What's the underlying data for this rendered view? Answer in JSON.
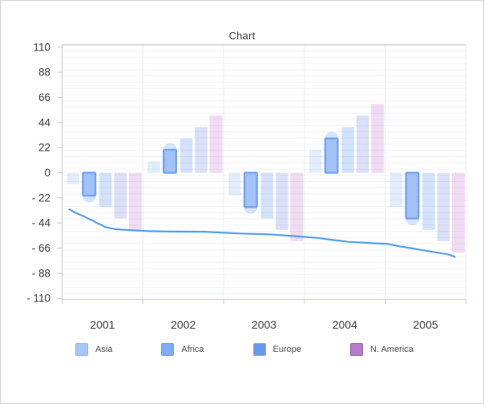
{
  "chart_data": {
    "type": "combo-bar-line",
    "title": "Chart",
    "categories": [
      "2001",
      "2002",
      "2003",
      "2004",
      "2005"
    ],
    "y_axis": {
      "min": -110,
      "max": 110,
      "tick_interval": 22,
      "tick_values": [
        110,
        88,
        66,
        44,
        22,
        0,
        -22,
        -44,
        -66,
        -88,
        -110
      ],
      "tick_labels": [
        "110",
        "88",
        "66",
        "44",
        "22",
        "0",
        "- 22",
        "- 44",
        "- 66",
        "- 88",
        "- 110"
      ],
      "grid": "minor-horizontal-on"
    },
    "bar_series": [
      {
        "name": "Asia",
        "fill": "#9fc2f6",
        "fill_opacity": 0.3,
        "highlighted": false,
        "values": [
          -10,
          10,
          -20,
          20,
          -30
        ]
      },
      {
        "name": "Africa",
        "fill": "#a3c3f6",
        "stroke": "#75a5f2",
        "halo_color": "#a9c9f7",
        "highlighted": true,
        "values": [
          -20,
          20,
          -30,
          30,
          -40
        ]
      },
      {
        "name": "Europe",
        "fill": "#6d9ff0",
        "fill_opacity": 0.3,
        "highlighted": false,
        "values": [
          -30,
          30,
          -40,
          40,
          -50
        ]
      },
      {
        "name": "",
        "fill": "#7e8ce4",
        "fill_opacity": 0.28,
        "highlighted": false,
        "values": [
          -40,
          40,
          -50,
          50,
          -60
        ]
      },
      {
        "name": "N. America",
        "fill": "#c77fd0",
        "fill_opacity": 0.27,
        "highlighted": false,
        "values": [
          -50,
          50,
          -60,
          60,
          -70
        ]
      }
    ],
    "line_series": {
      "color": "#58a1e8",
      "points": [
        {
          "x": 0.018,
          "y": -32
        },
        {
          "x": 0.03,
          "y": -34.5
        },
        {
          "x": 0.046,
          "y": -37
        },
        {
          "x": 0.058,
          "y": -38.8
        },
        {
          "x": 0.065,
          "y": -40.3
        },
        {
          "x": 0.077,
          "y": -42
        },
        {
          "x": 0.085,
          "y": -43.8
        },
        {
          "x": 0.097,
          "y": -45.6
        },
        {
          "x": 0.105,
          "y": -47.3
        },
        {
          "x": 0.117,
          "y": -48.4
        },
        {
          "x": 0.129,
          "y": -49.2
        },
        {
          "x": 0.145,
          "y": -49.8
        },
        {
          "x": 0.159,
          "y": -50.1
        },
        {
          "x": 0.177,
          "y": -50.5
        },
        {
          "x": 0.204,
          "y": -51
        },
        {
          "x": 0.238,
          "y": -51.3
        },
        {
          "x": 0.27,
          "y": -51.5
        },
        {
          "x": 0.313,
          "y": -51.6
        },
        {
          "x": 0.353,
          "y": -51.7
        },
        {
          "x": 0.383,
          "y": -52.2
        },
        {
          "x": 0.403,
          "y": -52.6
        },
        {
          "x": 0.442,
          "y": -53.2
        },
        {
          "x": 0.478,
          "y": -53.6
        },
        {
          "x": 0.512,
          "y": -54
        },
        {
          "x": 0.541,
          "y": -54.7
        },
        {
          "x": 0.571,
          "y": -55.4
        },
        {
          "x": 0.601,
          "y": -56.2
        },
        {
          "x": 0.631,
          "y": -57
        },
        {
          "x": 0.65,
          "y": -57.9
        },
        {
          "x": 0.67,
          "y": -58.9
        },
        {
          "x": 0.69,
          "y": -59.6
        },
        {
          "x": 0.708,
          "y": -60.5
        },
        {
          "x": 0.74,
          "y": -61.1
        },
        {
          "x": 0.769,
          "y": -61.7
        },
        {
          "x": 0.795,
          "y": -62.1
        },
        {
          "x": 0.809,
          "y": -62.4
        },
        {
          "x": 0.823,
          "y": -63.5
        },
        {
          "x": 0.839,
          "y": -64.7
        },
        {
          "x": 0.863,
          "y": -66
        },
        {
          "x": 0.888,
          "y": -67.5
        },
        {
          "x": 0.908,
          "y": -68.7
        },
        {
          "x": 0.928,
          "y": -69.9
        },
        {
          "x": 0.944,
          "y": -70.8
        },
        {
          "x": 0.958,
          "y": -71.7
        },
        {
          "x": 0.972,
          "y": -73.6
        }
      ]
    },
    "legend": {
      "position": "bottom",
      "items": [
        {
          "label": "Asia",
          "fill": "#a6c8f8",
          "border": "#8ab4f3"
        },
        {
          "label": "Africa",
          "fill": "#7cadf5",
          "border": "#639af0"
        },
        {
          "label": "Europe",
          "fill": "#6499f1",
          "border": "#cc8ac8"
        },
        {
          "label": "N. America",
          "fill": "#b57cca",
          "border": "#9259ae"
        }
      ]
    },
    "colors": {
      "plot_border_top": "#bababe",
      "plot_border_side": "#c9c9cd",
      "axis_bottom": "#c3d4ec",
      "grid_minor": "#f1f2f5",
      "grid_vertical": "#eaecf0",
      "tick": "#c6c6ca",
      "text": "#3d3d3d"
    }
  }
}
